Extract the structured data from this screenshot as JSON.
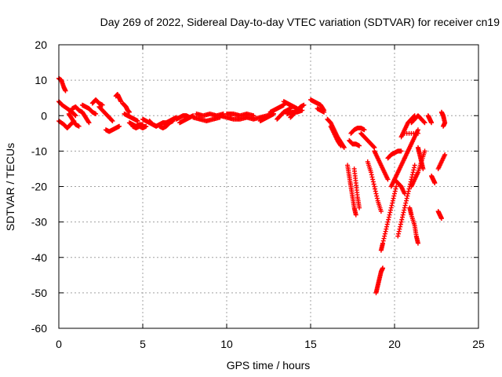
{
  "chart_data": {
    "type": "scatter",
    "title": "Day 269 of 2022, Sidereal Day-to-day VTEC variation (SDTVAR) for receiver cn19",
    "xlabel": "GPS time / hours",
    "ylabel": "SDTVAR / TECUs",
    "xlim": [
      0,
      25
    ],
    "ylim": [
      -60,
      20
    ],
    "xticks": [
      0,
      5,
      10,
      15,
      20,
      25
    ],
    "yticks": [
      -60,
      -50,
      -40,
      -30,
      -20,
      -10,
      0,
      10,
      20
    ],
    "grid": true,
    "marker": "+",
    "color": "#ff0000",
    "tracks": [
      [
        [
          0.0,
          10.5
        ],
        [
          0.15,
          10.0
        ],
        [
          0.3,
          8.0
        ],
        [
          0.4,
          7.0
        ]
      ],
      [
        [
          0.0,
          4.0
        ],
        [
          0.2,
          3.0
        ],
        [
          0.5,
          2.0
        ],
        [
          0.8,
          1.0
        ],
        [
          1.0,
          0.0
        ]
      ],
      [
        [
          0.0,
          -1.5
        ],
        [
          0.3,
          -2.5
        ],
        [
          0.5,
          -3.5
        ],
        [
          0.7,
          -2.5
        ],
        [
          0.9,
          -1.5
        ]
      ],
      [
        [
          0.6,
          0.5
        ],
        [
          0.8,
          -1.0
        ],
        [
          1.0,
          -2.5
        ],
        [
          1.2,
          -3.0
        ]
      ],
      [
        [
          0.8,
          2.0
        ],
        [
          1.0,
          2.5
        ],
        [
          1.2,
          1.5
        ],
        [
          1.4,
          1.0
        ],
        [
          1.6,
          -0.5
        ],
        [
          1.8,
          -2.0
        ]
      ],
      [
        [
          1.4,
          3.0
        ],
        [
          1.6,
          2.5
        ],
        [
          1.8,
          2.0
        ],
        [
          2.0,
          1.0
        ],
        [
          2.2,
          0.5
        ]
      ],
      [
        [
          2.0,
          3.5
        ],
        [
          2.2,
          4.5
        ],
        [
          2.4,
          3.5
        ],
        [
          2.6,
          3.0
        ]
      ],
      [
        [
          2.4,
          2.5
        ],
        [
          2.6,
          1.5
        ],
        [
          2.8,
          0.5
        ],
        [
          3.0,
          -0.5
        ],
        [
          3.2,
          -1.5
        ]
      ],
      [
        [
          2.8,
          -4.0
        ],
        [
          3.0,
          -4.5
        ],
        [
          3.2,
          -4.0
        ],
        [
          3.4,
          -3.5
        ],
        [
          3.6,
          -3.0
        ]
      ],
      [
        [
          3.4,
          5.5
        ],
        [
          3.5,
          6.0
        ],
        [
          3.6,
          5.0
        ],
        [
          3.7,
          4.0
        ]
      ],
      [
        [
          3.8,
          3.5
        ],
        [
          3.9,
          3.0
        ],
        [
          4.0,
          2.5
        ],
        [
          4.1,
          1.5
        ],
        [
          4.2,
          1.0
        ]
      ],
      [
        [
          3.9,
          0.5
        ],
        [
          4.1,
          0.0
        ],
        [
          4.3,
          -0.5
        ],
        [
          4.5,
          -1.0
        ],
        [
          4.7,
          -1.5
        ]
      ],
      [
        [
          4.2,
          -2.0
        ],
        [
          4.4,
          -2.5
        ],
        [
          4.6,
          -3.0
        ],
        [
          4.8,
          -2.5
        ],
        [
          5.0,
          -2.5
        ]
      ],
      [
        [
          4.4,
          -3.0
        ],
        [
          4.6,
          -3.5
        ],
        [
          4.8,
          -3.0
        ],
        [
          5.0,
          -3.5
        ],
        [
          5.2,
          -3.0
        ]
      ],
      [
        [
          5.0,
          -1.0
        ],
        [
          5.2,
          -1.5
        ],
        [
          5.4,
          -2.0
        ],
        [
          5.6,
          -2.5
        ],
        [
          5.8,
          -3.0
        ]
      ],
      [
        [
          5.4,
          -1.5
        ],
        [
          5.6,
          -2.5
        ],
        [
          5.8,
          -3.0
        ],
        [
          6.0,
          -2.5
        ],
        [
          6.2,
          -2.0
        ]
      ],
      [
        [
          6.0,
          -3.0
        ],
        [
          6.2,
          -3.5
        ],
        [
          6.4,
          -3.0
        ],
        [
          6.6,
          -2.0
        ],
        [
          6.8,
          -1.5
        ]
      ],
      [
        [
          6.2,
          -2.0
        ],
        [
          6.4,
          -2.0
        ],
        [
          6.6,
          -1.5
        ],
        [
          6.8,
          -1.0
        ],
        [
          7.0,
          -0.5
        ]
      ],
      [
        [
          7.0,
          -1.0
        ],
        [
          7.2,
          -0.5
        ],
        [
          7.4,
          0.0
        ],
        [
          7.6,
          0.0
        ],
        [
          7.8,
          -0.5
        ]
      ],
      [
        [
          7.2,
          -2.0
        ],
        [
          7.4,
          -1.5
        ],
        [
          7.6,
          -1.0
        ],
        [
          7.8,
          -0.5
        ],
        [
          8.0,
          0.0
        ]
      ],
      [
        [
          8.0,
          -0.5
        ],
        [
          8.4,
          -1.0
        ],
        [
          8.8,
          -1.5
        ],
        [
          9.2,
          -1.0
        ],
        [
          9.6,
          -0.5
        ]
      ],
      [
        [
          8.2,
          0.5
        ],
        [
          8.6,
          0.0
        ],
        [
          9.0,
          0.5
        ],
        [
          9.4,
          0.0
        ],
        [
          9.8,
          0.5
        ]
      ],
      [
        [
          9.6,
          0.0
        ],
        [
          10.0,
          -0.5
        ],
        [
          10.4,
          -1.0
        ],
        [
          10.8,
          -1.0
        ],
        [
          11.2,
          -0.5
        ]
      ],
      [
        [
          10.0,
          0.5
        ],
        [
          10.4,
          0.5
        ],
        [
          10.8,
          0.0
        ],
        [
          11.2,
          0.5
        ],
        [
          11.6,
          0.0
        ]
      ],
      [
        [
          11.2,
          -0.5
        ],
        [
          11.6,
          -1.0
        ],
        [
          12.0,
          -0.5
        ],
        [
          12.4,
          0.0
        ],
        [
          12.8,
          0.5
        ]
      ],
      [
        [
          12.0,
          -1.5
        ],
        [
          12.2,
          -1.0
        ],
        [
          12.4,
          -0.5
        ],
        [
          12.6,
          0.0
        ],
        [
          12.8,
          0.5
        ]
      ],
      [
        [
          12.6,
          1.0
        ],
        [
          12.8,
          1.5
        ],
        [
          13.0,
          2.0
        ],
        [
          13.2,
          2.5
        ],
        [
          13.4,
          3.0
        ]
      ],
      [
        [
          13.0,
          -1.0
        ],
        [
          13.2,
          0.0
        ],
        [
          13.4,
          1.0
        ],
        [
          13.6,
          1.5
        ],
        [
          13.8,
          2.0
        ]
      ],
      [
        [
          13.4,
          4.0
        ],
        [
          13.6,
          3.5
        ],
        [
          13.8,
          3.0
        ],
        [
          14.0,
          2.5
        ],
        [
          14.2,
          2.0
        ]
      ],
      [
        [
          13.8,
          -0.5
        ],
        [
          14.0,
          0.5
        ],
        [
          14.2,
          1.5
        ],
        [
          14.4,
          2.5
        ],
        [
          14.6,
          3.0
        ]
      ],
      [
        [
          13.6,
          0.5
        ],
        [
          13.9,
          1.0
        ],
        [
          14.2,
          1.0
        ],
        [
          14.5,
          1.5
        ]
      ],
      [
        [
          15.0,
          4.5
        ],
        [
          15.2,
          4.0
        ],
        [
          15.4,
          3.5
        ],
        [
          15.6,
          3.0
        ],
        [
          15.8,
          1.5
        ]
      ],
      [
        [
          15.4,
          2.0
        ],
        [
          15.6,
          1.5
        ],
        [
          15.8,
          1.0
        ]
      ],
      [
        [
          16.0,
          -1.0
        ],
        [
          16.2,
          -2.0
        ],
        [
          16.4,
          -4.0
        ],
        [
          16.6,
          -6.0
        ],
        [
          16.8,
          -7.5
        ],
        [
          17.0,
          -9.0
        ]
      ],
      [
        [
          16.2,
          -3.0
        ],
        [
          16.4,
          -5.0
        ],
        [
          16.6,
          -7.0
        ],
        [
          16.8,
          -8.5
        ]
      ],
      [
        [
          17.2,
          -14.0
        ],
        [
          17.3,
          -17.0
        ],
        [
          17.4,
          -20.0
        ],
        [
          17.5,
          -23.0
        ],
        [
          17.6,
          -26.0
        ],
        [
          17.7,
          -28.0
        ]
      ],
      [
        [
          17.6,
          -15.0
        ],
        [
          17.7,
          -19.0
        ],
        [
          17.8,
          -23.0
        ],
        [
          17.9,
          -26.0
        ]
      ],
      [
        [
          17.3,
          -7.0
        ],
        [
          17.5,
          -8.0
        ],
        [
          17.7,
          -8.0
        ],
        [
          17.9,
          -8.5
        ]
      ],
      [
        [
          17.4,
          -5.0
        ],
        [
          17.6,
          -4.0
        ],
        [
          17.8,
          -3.5
        ],
        [
          18.0,
          -3.5
        ],
        [
          18.2,
          -4.0
        ]
      ],
      [
        [
          18.0,
          -5.0
        ],
        [
          18.2,
          -6.0
        ],
        [
          18.4,
          -7.0
        ],
        [
          18.6,
          -8.0
        ],
        [
          18.8,
          -9.0
        ]
      ],
      [
        [
          18.4,
          -13.0
        ],
        [
          18.6,
          -16.0
        ],
        [
          18.8,
          -20.0
        ],
        [
          19.0,
          -24.0
        ],
        [
          19.2,
          -27.0
        ]
      ],
      [
        [
          18.8,
          -10.0
        ],
        [
          19.0,
          -12.0
        ],
        [
          19.2,
          -14.0
        ],
        [
          19.4,
          -16.0
        ],
        [
          19.6,
          -18.0
        ]
      ],
      [
        [
          18.9,
          -50.0
        ],
        [
          19.0,
          -48.0
        ],
        [
          19.1,
          -46.0
        ],
        [
          19.2,
          -44.0
        ],
        [
          19.3,
          -43.0
        ]
      ],
      [
        [
          19.2,
          -38.0
        ],
        [
          19.3,
          -36.0
        ],
        [
          19.5,
          -32.0
        ],
        [
          19.7,
          -28.0
        ],
        [
          19.9,
          -24.0
        ],
        [
          20.1,
          -20.0
        ]
      ],
      [
        [
          19.6,
          -12.0
        ],
        [
          19.8,
          -11.0
        ],
        [
          20.0,
          -10.5
        ],
        [
          20.2,
          -10.0
        ],
        [
          20.4,
          -10.0
        ]
      ],
      [
        [
          19.8,
          -20.0
        ],
        [
          20.0,
          -18.0
        ],
        [
          20.2,
          -16.0
        ],
        [
          20.4,
          -14.0
        ],
        [
          20.6,
          -12.0
        ]
      ],
      [
        [
          20.0,
          -18.0
        ],
        [
          20.2,
          -19.0
        ],
        [
          20.4,
          -20.0
        ],
        [
          20.6,
          -22.0
        ]
      ],
      [
        [
          20.2,
          -34.0
        ],
        [
          20.4,
          -30.0
        ],
        [
          20.6,
          -26.0
        ],
        [
          20.8,
          -22.0
        ],
        [
          21.0,
          -18.0
        ],
        [
          21.2,
          -14.0
        ]
      ],
      [
        [
          20.4,
          -6.0
        ],
        [
          20.6,
          -4.0
        ],
        [
          20.8,
          -2.0
        ],
        [
          21.0,
          -1.0
        ],
        [
          21.2,
          0.0
        ]
      ],
      [
        [
          20.6,
          -12.0
        ],
        [
          20.8,
          -10.0
        ],
        [
          21.0,
          -8.0
        ],
        [
          21.2,
          -6.0
        ],
        [
          21.4,
          -4.0
        ]
      ],
      [
        [
          20.9,
          -26.0
        ],
        [
          21.0,
          -28.0
        ],
        [
          21.2,
          -31.0
        ],
        [
          21.3,
          -34.0
        ],
        [
          21.4,
          -36.0
        ]
      ],
      [
        [
          21.0,
          -20.0
        ],
        [
          21.2,
          -18.0
        ],
        [
          21.4,
          -16.0
        ],
        [
          21.6,
          -13.0
        ],
        [
          21.8,
          -10.0
        ]
      ],
      [
        [
          21.0,
          -2.0
        ],
        [
          21.2,
          -1.0
        ],
        [
          21.4,
          0.0
        ],
        [
          21.6,
          -1.0
        ],
        [
          21.8,
          -2.0
        ]
      ],
      [
        [
          21.4,
          -9.0
        ],
        [
          21.5,
          -11.0
        ],
        [
          21.6,
          -13.0
        ],
        [
          21.7,
          -15.0
        ]
      ],
      [
        [
          22.0,
          0.0
        ],
        [
          22.1,
          -1.0
        ],
        [
          22.2,
          -2.0
        ]
      ],
      [
        [
          22.2,
          -17.0
        ],
        [
          22.3,
          -18.0
        ],
        [
          22.4,
          -19.0
        ]
      ],
      [
        [
          22.6,
          -27.0
        ],
        [
          22.7,
          -28.0
        ],
        [
          22.8,
          -29.0
        ]
      ],
      [
        [
          22.6,
          -15.0
        ],
        [
          22.8,
          -13.0
        ],
        [
          23.0,
          -11.0
        ]
      ],
      [
        [
          22.8,
          1.0
        ],
        [
          22.9,
          0.0
        ],
        [
          23.0,
          -2.0
        ],
        [
          22.9,
          -3.0
        ]
      ],
      [
        [
          20.6,
          -5.0
        ],
        [
          21.4,
          -5.0
        ]
      ]
    ]
  }
}
